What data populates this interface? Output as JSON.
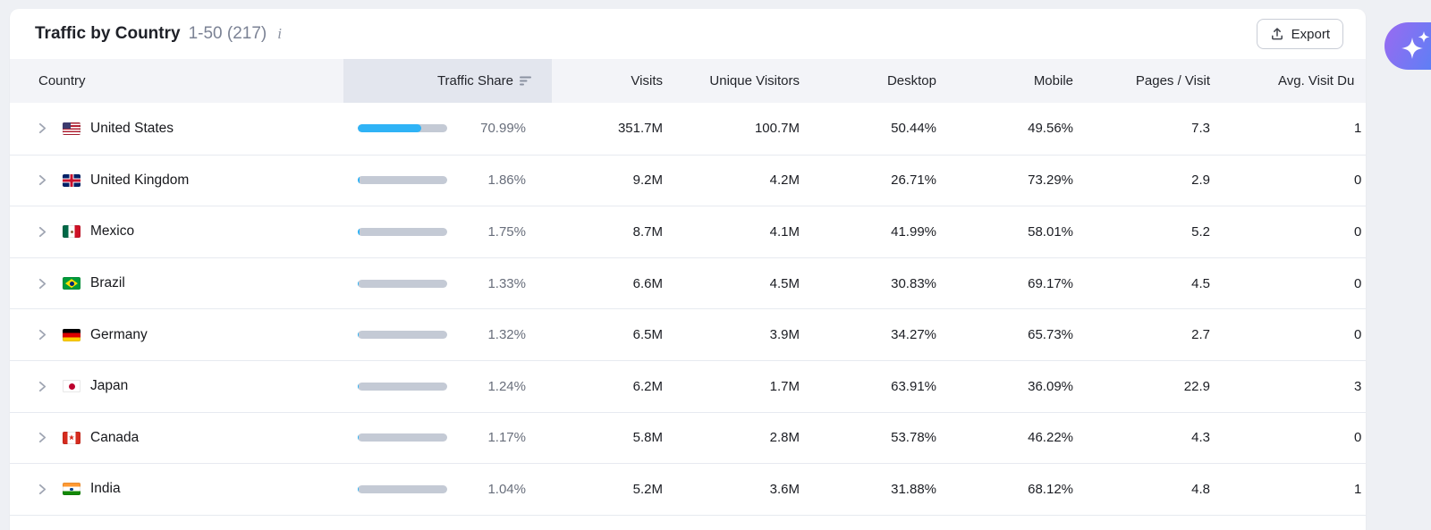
{
  "panel": {
    "title": "Traffic by Country",
    "range": "1-50 (217)",
    "info_icon": "i",
    "export_label": "Export"
  },
  "colors": {
    "bar_track": "#c4cad5",
    "bar_fill": "#2fb3f6",
    "header_highlight": "#e3e6ee",
    "ai_gradient_from": "#9a6af1",
    "ai_gradient_to": "#4b86f6"
  },
  "table": {
    "columns": [
      {
        "key": "country",
        "label": "Country",
        "align": "left"
      },
      {
        "key": "share",
        "label": "Traffic Share",
        "align": "right",
        "sorted": true
      },
      {
        "key": "visits",
        "label": "Visits",
        "align": "right"
      },
      {
        "key": "unique_visitors",
        "label": "Unique Visitors",
        "align": "right"
      },
      {
        "key": "desktop",
        "label": "Desktop",
        "align": "right"
      },
      {
        "key": "mobile",
        "label": "Mobile",
        "align": "right"
      },
      {
        "key": "pages_visit",
        "label": "Pages / Visit",
        "align": "right"
      },
      {
        "key": "avg_visit_duration",
        "label": "Avg. Visit Du",
        "align": "right",
        "clipped": true
      }
    ],
    "rows": [
      {
        "country": "United States",
        "flag": "us",
        "share": "70.99%",
        "share_pct": 70.99,
        "visits": "351.7M",
        "unique_visitors": "100.7M",
        "desktop": "50.44%",
        "mobile": "49.56%",
        "pages_visit": "7.3",
        "avg_visit_duration": "1"
      },
      {
        "country": "United Kingdom",
        "flag": "gb",
        "share": "1.86%",
        "share_pct": 1.86,
        "visits": "9.2M",
        "unique_visitors": "4.2M",
        "desktop": "26.71%",
        "mobile": "73.29%",
        "pages_visit": "2.9",
        "avg_visit_duration": "0"
      },
      {
        "country": "Mexico",
        "flag": "mx",
        "share": "1.75%",
        "share_pct": 1.75,
        "visits": "8.7M",
        "unique_visitors": "4.1M",
        "desktop": "41.99%",
        "mobile": "58.01%",
        "pages_visit": "5.2",
        "avg_visit_duration": "0"
      },
      {
        "country": "Brazil",
        "flag": "br",
        "share": "1.33%",
        "share_pct": 1.33,
        "visits": "6.6M",
        "unique_visitors": "4.5M",
        "desktop": "30.83%",
        "mobile": "69.17%",
        "pages_visit": "4.5",
        "avg_visit_duration": "0"
      },
      {
        "country": "Germany",
        "flag": "de",
        "share": "1.32%",
        "share_pct": 1.32,
        "visits": "6.5M",
        "unique_visitors": "3.9M",
        "desktop": "34.27%",
        "mobile": "65.73%",
        "pages_visit": "2.7",
        "avg_visit_duration": "0"
      },
      {
        "country": "Japan",
        "flag": "jp",
        "share": "1.24%",
        "share_pct": 1.24,
        "visits": "6.2M",
        "unique_visitors": "1.7M",
        "desktop": "63.91%",
        "mobile": "36.09%",
        "pages_visit": "22.9",
        "avg_visit_duration": "3"
      },
      {
        "country": "Canada",
        "flag": "ca",
        "share": "1.17%",
        "share_pct": 1.17,
        "visits": "5.8M",
        "unique_visitors": "2.8M",
        "desktop": "53.78%",
        "mobile": "46.22%",
        "pages_visit": "4.3",
        "avg_visit_duration": "0"
      },
      {
        "country": "India",
        "flag": "in",
        "share": "1.04%",
        "share_pct": 1.04,
        "visits": "5.2M",
        "unique_visitors": "3.6M",
        "desktop": "31.88%",
        "mobile": "68.12%",
        "pages_visit": "4.8",
        "avg_visit_duration": "1"
      }
    ]
  }
}
